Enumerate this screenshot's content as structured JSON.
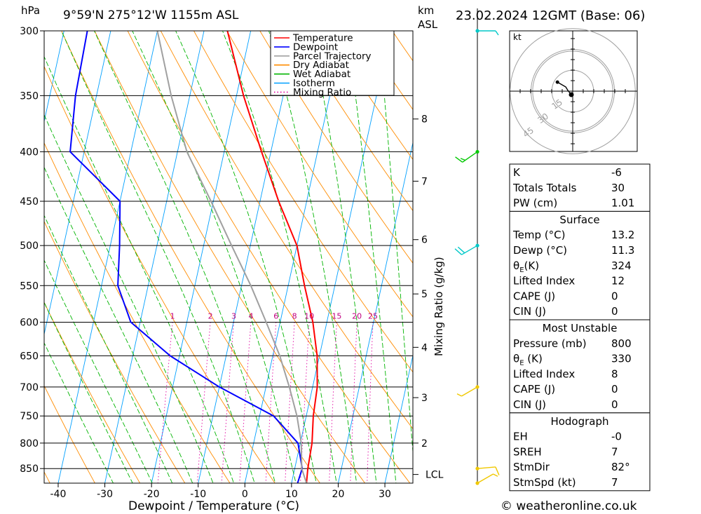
{
  "header": {
    "hpa_label": "hPa",
    "location": "9°59'N  275°12'W  1155m  ASL",
    "km_label": "km",
    "asl_label": "ASL",
    "datetime": "23.02.2024  12GMT  (Base: 06)"
  },
  "legend": [
    {
      "name": "Temperature",
      "color": "#ff0000",
      "style": "solid"
    },
    {
      "name": "Dewpoint",
      "color": "#0000ff",
      "style": "solid"
    },
    {
      "name": "Parcel Trajectory",
      "color": "#a0a0a0",
      "style": "solid"
    },
    {
      "name": "Dry Adiabat",
      "color": "#ff8c00",
      "style": "solid"
    },
    {
      "name": "Wet Adiabat",
      "color": "#00b400",
      "style": "solid"
    },
    {
      "name": "Isotherm",
      "color": "#00a0ff",
      "style": "solid"
    },
    {
      "name": "Mixing Ratio",
      "color": "#e000a0",
      "style": "dotted"
    }
  ],
  "chart_data": {
    "type": "line",
    "title": "9°59'N  275°12'W  1155m  ASL",
    "xlabel": "Dewpoint / Temperature (°C)",
    "ylabel": "hPa",
    "y2label": "Mixing Ratio (g/kg)",
    "xlim": [
      -43,
      36
    ],
    "ylim": [
      300,
      880
    ],
    "skew_per_log_p": 131.5,
    "x_ticks": [
      -40,
      -30,
      -20,
      -10,
      0,
      10,
      20,
      30
    ],
    "pressure_levels": [
      300,
      350,
      400,
      450,
      500,
      550,
      600,
      650,
      700,
      750,
      800,
      850
    ],
    "km_ticks": [
      {
        "km": 8,
        "p": 370
      },
      {
        "km": 7,
        "p": 429
      },
      {
        "km": 6,
        "p": 493
      },
      {
        "km": 5,
        "p": 561
      },
      {
        "km": 4,
        "p": 637
      },
      {
        "km": 3,
        "p": 718
      },
      {
        "km": 2,
        "p": 800
      }
    ],
    "lcl_label": "LCL",
    "lcl_pressure": 862,
    "mixing_ratio_labels": [
      "1",
      "2",
      "3",
      "4",
      "6",
      "8",
      "10",
      "15",
      "20",
      "25"
    ],
    "mixing_ratio_values": [
      1,
      2,
      3,
      4,
      6,
      8,
      10,
      15,
      20,
      25
    ],
    "series": [
      {
        "name": "Temperature",
        "color": "#ff0000",
        "points": [
          [
            300,
            -25
          ],
          [
            350,
            -18.5
          ],
          [
            400,
            -12
          ],
          [
            450,
            -6
          ],
          [
            500,
            0
          ],
          [
            550,
            3.5
          ],
          [
            600,
            7
          ],
          [
            650,
            9.5
          ],
          [
            700,
            11
          ],
          [
            750,
            11.5
          ],
          [
            800,
            12.5
          ],
          [
            850,
            12.8
          ],
          [
            880,
            13.2
          ]
        ]
      },
      {
        "name": "Dewpoint",
        "color": "#0000ff",
        "points": [
          [
            300,
            -55
          ],
          [
            350,
            -54.5
          ],
          [
            400,
            -53
          ],
          [
            450,
            -40
          ],
          [
            500,
            -38
          ],
          [
            550,
            -36.5
          ],
          [
            600,
            -32
          ],
          [
            650,
            -22
          ],
          [
            700,
            -10
          ],
          [
            750,
            3
          ],
          [
            800,
            9.5
          ],
          [
            850,
            11.6
          ],
          [
            880,
            11.3
          ]
        ]
      },
      {
        "name": "Parcel Trajectory",
        "color": "#a0a0a0",
        "points": [
          [
            300,
            -40
          ],
          [
            350,
            -34
          ],
          [
            400,
            -28
          ],
          [
            450,
            -20.5
          ],
          [
            500,
            -14
          ],
          [
            550,
            -8
          ],
          [
            600,
            -3
          ],
          [
            650,
            1.5
          ],
          [
            700,
            5
          ],
          [
            750,
            8
          ],
          [
            800,
            10.2
          ],
          [
            850,
            11.5
          ],
          [
            880,
            13.2
          ]
        ]
      }
    ]
  },
  "hodograph": {
    "unit_label": "kt",
    "ring_labels": [
      "15",
      "30",
      "45"
    ],
    "ring_values": [
      15,
      30,
      45
    ],
    "points_kt": [
      [
        -1,
        2.5
      ],
      [
        -3.5,
        -0.5
      ],
      [
        -5,
        -3
      ],
      [
        -11,
        -6.5
      ]
    ]
  },
  "wind_profile": [
    {
      "p": 300,
      "color": "#00c8c8",
      "dir_deg": 90,
      "speed_kt": 5
    },
    {
      "p": 400,
      "color": "#00c800",
      "dir_deg": 235,
      "speed_kt": 15
    },
    {
      "p": 500,
      "color": "#00c8c8",
      "dir_deg": 240,
      "speed_kt": 20
    },
    {
      "p": 700,
      "color": "#f0c800",
      "dir_deg": 240,
      "speed_kt": 5
    },
    {
      "p": 850,
      "color": "#f0c800",
      "dir_deg": 85,
      "speed_kt": 10
    },
    {
      "p": 880,
      "color": "#f0c800",
      "dir_deg": 60,
      "speed_kt": 5
    }
  ],
  "indices": {
    "rows": [
      {
        "label": "K",
        "value": "-6"
      },
      {
        "label": "Totals Totals",
        "value": "30"
      },
      {
        "label": "PW (cm)",
        "value": "1.01"
      }
    ]
  },
  "surface": {
    "heading": "Surface",
    "rows": [
      {
        "label": "Temp (°C)",
        "value": "13.2"
      },
      {
        "label": "Dewp (°C)",
        "value": "11.3"
      },
      {
        "label": "θE(K)",
        "value": "324"
      },
      {
        "label": "Lifted Index",
        "value": "12"
      },
      {
        "label": "CAPE (J)",
        "value": "0"
      },
      {
        "label": "CIN (J)",
        "value": "0"
      }
    ]
  },
  "most_unstable": {
    "heading": "Most Unstable",
    "rows": [
      {
        "label": "Pressure (mb)",
        "value": "800"
      },
      {
        "label": "θE (K)",
        "value": "330"
      },
      {
        "label": "Lifted Index",
        "value": "8"
      },
      {
        "label": "CAPE (J)",
        "value": "0"
      },
      {
        "label": "CIN (J)",
        "value": "0"
      }
    ]
  },
  "hodograph_table": {
    "heading": "Hodograph",
    "rows": [
      {
        "label": "EH",
        "value": "-0"
      },
      {
        "label": "SREH",
        "value": "7"
      },
      {
        "label": "StmDir",
        "value": "82°"
      },
      {
        "label": "StmSpd (kt)",
        "value": "7"
      }
    ]
  },
  "footer": {
    "copyright": "© weatheronline.co.uk"
  }
}
